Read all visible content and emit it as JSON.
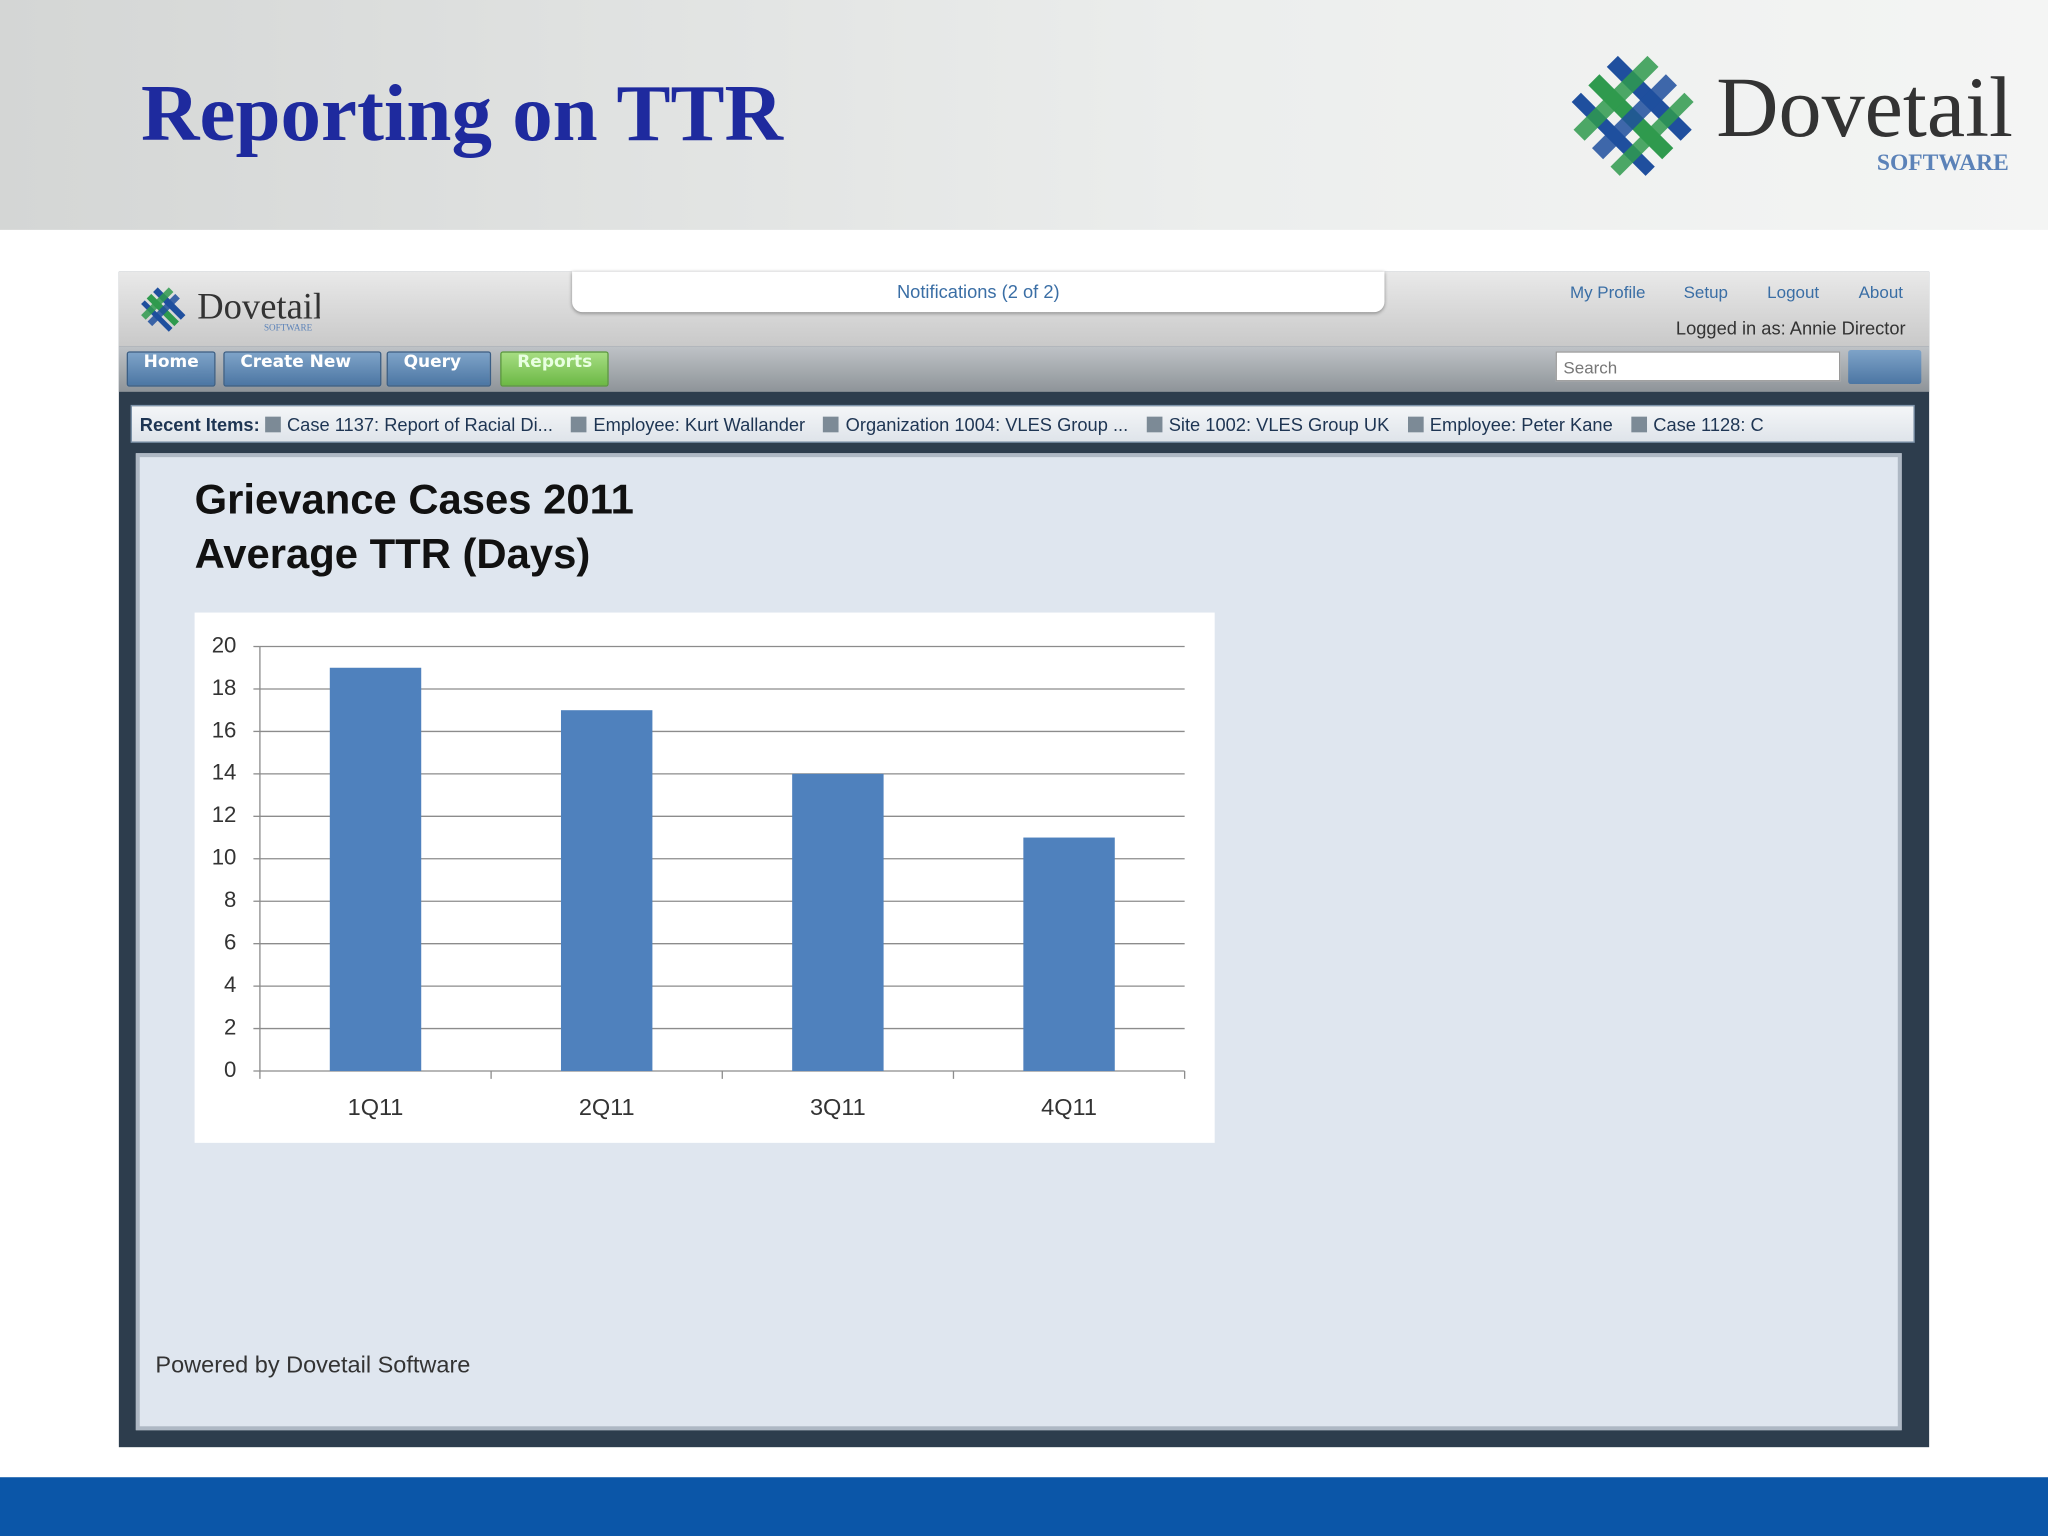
{
  "slide": {
    "title": "Reporting on TTR",
    "logo": {
      "name": "Dovetail",
      "sub": "SOFTWARE"
    }
  },
  "app": {
    "logo": {
      "name": "Dovetail",
      "sub": "SOFTWARE"
    },
    "notifications": "Notifications (2 of 2)",
    "links": [
      "My Profile",
      "Setup",
      "Logout",
      "About"
    ],
    "logged_in": "Logged in as: Annie Director",
    "nav": [
      "Home",
      "Create New",
      "Query",
      "Reports"
    ],
    "search_placeholder": "Search",
    "recent_label": "Recent Items:",
    "recent_items": [
      "Case 1137: Report of Racial Di...",
      "Employee: Kurt Wallander",
      "Organization 1004: VLES Group ...",
      "Site 1002: VLES Group UK",
      "Employee: Peter Kane",
      "Case 1128: C"
    ],
    "footer": "Powered by Dovetail Software"
  },
  "chart_data": {
    "type": "bar",
    "title": "Grievance Cases 2011",
    "subtitle": "Average TTR (Days)",
    "categories": [
      "1Q11",
      "2Q11",
      "3Q11",
      "4Q11"
    ],
    "values": [
      19,
      17,
      14,
      11
    ],
    "color": "#4f81bd",
    "ylim": [
      0,
      20
    ],
    "yticks": [
      0,
      2,
      4,
      6,
      8,
      10,
      12,
      14,
      16,
      18,
      20
    ],
    "grid": true
  }
}
